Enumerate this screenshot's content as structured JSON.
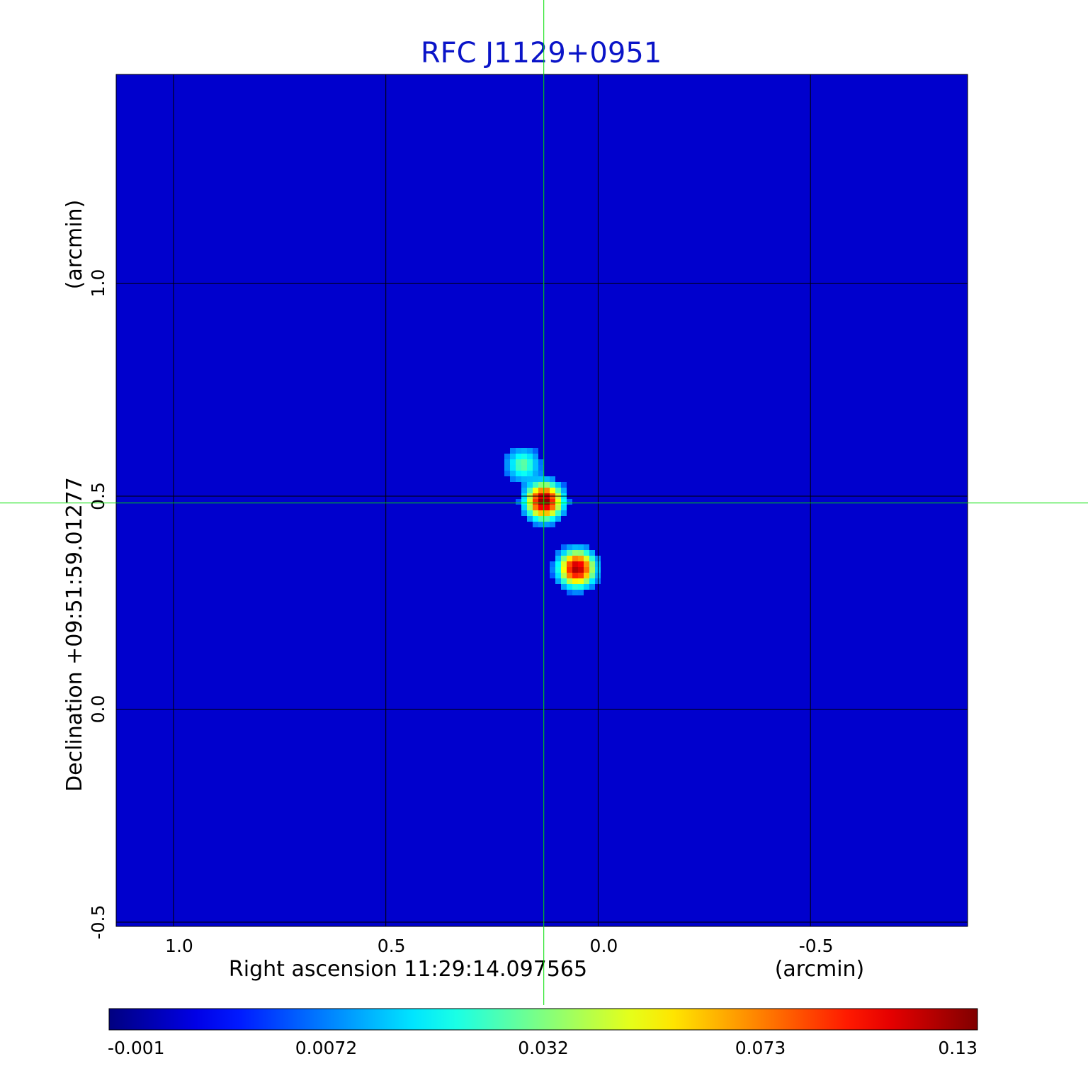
{
  "chart_data": {
    "type": "heatmap",
    "title": "RFC J1129+0951",
    "xlabel": "Right ascension  11:29:14.097565",
    "xlabel_unit": "(arcmin)",
    "ylabel": "Declination  +09:51:59.01277",
    "ylabel_unit": "(arcmin)",
    "x_ticks": [
      "1.0",
      "0.5",
      "0.0",
      "-0.5"
    ],
    "x_tick_values": [
      1.0,
      0.5,
      0.0,
      -0.5
    ],
    "y_ticks": [
      "1.0",
      "0.5",
      "0.0",
      "-0.5"
    ],
    "y_tick_values": [
      1.0,
      0.5,
      0.0,
      -0.5
    ],
    "xlim": [
      1.135,
      -0.87
    ],
    "ylim": [
      -0.51,
      1.49
    ],
    "grid": true,
    "crosshair": {
      "x": 0.128,
      "y": 0.484,
      "color": "#00e000"
    },
    "background_value": 0.0015,
    "sources": [
      {
        "x": 0.127,
        "y": 0.488,
        "peak": 0.13
      },
      {
        "x": 0.05,
        "y": 0.33,
        "peak": 0.12
      },
      {
        "x": 0.177,
        "y": 0.574,
        "peak": 0.028
      }
    ],
    "colorbar": {
      "tick_labels": [
        "-0.001",
        "0.0072",
        "0.032",
        "0.073",
        "0.13"
      ],
      "tick_values": [
        -0.001,
        0.0072,
        0.032,
        0.073,
        0.13
      ],
      "colormap": "jet",
      "colors": [
        "#00008f",
        "#0000ff",
        "#00ffff",
        "#ffff00",
        "#ff0000",
        "#800000"
      ]
    },
    "colors": {
      "title": "#0a14c8",
      "grid": "#000000",
      "crosshair": "#00e000"
    }
  }
}
